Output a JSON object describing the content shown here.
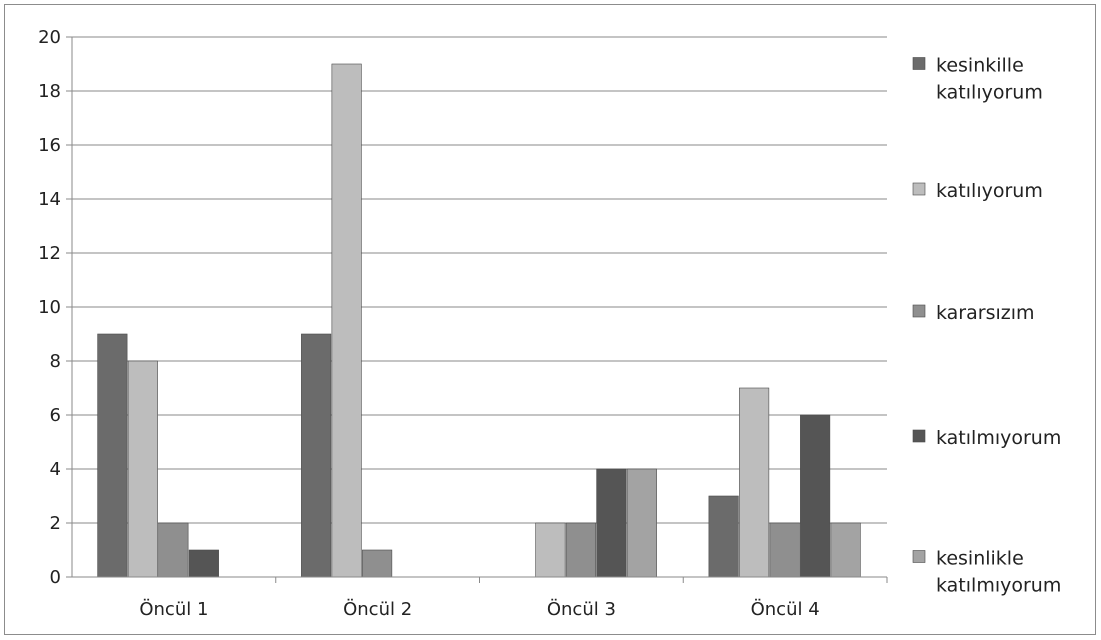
{
  "chart_data": {
    "type": "bar",
    "categories": [
      "Öncül 1",
      "Öncül 2",
      "Öncül 3",
      "Öncül 4"
    ],
    "series": [
      {
        "name": "kesinkille katılıyorum",
        "legend_lines": [
          "kesinkille",
          "katılıyorum"
        ],
        "color": "#6b6b6b",
        "values": [
          9,
          9,
          0,
          3
        ]
      },
      {
        "name": "katılıyorum",
        "legend_lines": [
          "katılıyorum"
        ],
        "color": "#bdbdbd",
        "values": [
          8,
          19,
          2,
          7
        ]
      },
      {
        "name": "kararsızım",
        "legend_lines": [
          "kararsızım"
        ],
        "color": "#8f8f8f",
        "values": [
          2,
          1,
          2,
          2
        ]
      },
      {
        "name": "katılmıyorum",
        "legend_lines": [
          "katılmıyorum"
        ],
        "color": "#555555",
        "values": [
          1,
          0,
          4,
          6
        ]
      },
      {
        "name": "kesinlikle katılmıyorum",
        "legend_lines": [
          "kesinlikle",
          "katılmıyorum"
        ],
        "color": "#a3a3a3",
        "values": [
          0,
          0,
          4,
          2
        ]
      }
    ],
    "yticks": [
      "0",
      "2",
      "4",
      "6",
      "8",
      "10",
      "12",
      "14",
      "16",
      "18",
      "20"
    ],
    "ylim": [
      0,
      20
    ],
    "grid": true,
    "legend_position": "right"
  }
}
